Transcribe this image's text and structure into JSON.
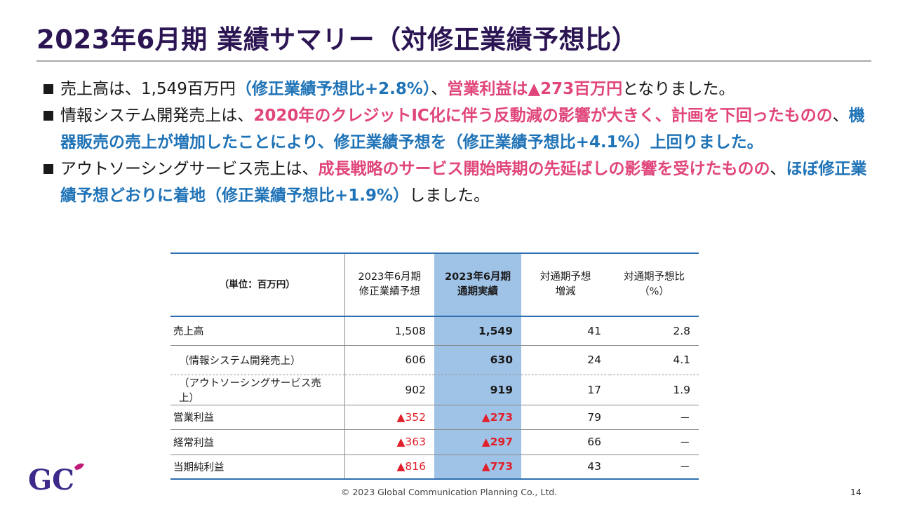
{
  "slide": {
    "title": "2023年6月期 業績サマリー（対修正業績予想比）",
    "bullets": [
      {
        "segments": [
          {
            "text": "売上高は、1,549百万円",
            "style": "normal"
          },
          {
            "text": "（修正業績予想比+2.8%）",
            "style": "blue"
          },
          {
            "text": "、",
            "style": "normal"
          },
          {
            "text": "営業利益は▲273百万円",
            "style": "pink"
          },
          {
            "text": "となりました。",
            "style": "normal"
          }
        ]
      },
      {
        "segments": [
          {
            "text": "情報システム開発売上は、",
            "style": "normal"
          },
          {
            "text": "2020年のクレジットIC化に伴う反動減の影響が大きく、計画を下回ったものの",
            "style": "pink"
          },
          {
            "text": "、",
            "style": "normal"
          },
          {
            "text": "機器販売の売上が増加したことにより、修正業績予想を（修正業績予想比+4.1%）上回りました。",
            "style": "blue"
          }
        ]
      },
      {
        "segments": [
          {
            "text": "アウトソーシングサービス売上は、",
            "style": "normal"
          },
          {
            "text": "成長戦略のサービス開始時期の先延ばしの影響を受けたものの",
            "style": "pink"
          },
          {
            "text": "、",
            "style": "normal"
          },
          {
            "text": "ほぼ修正業績予想どおりに着地（修正業績予想比+1.9%）",
            "style": "blue"
          },
          {
            "text": "しました。",
            "style": "normal"
          }
        ]
      }
    ]
  },
  "table": {
    "unit_label": "（単位：百万円）",
    "columns": [
      {
        "line1": "2023年6月期",
        "line2": "修正業績予想"
      },
      {
        "line1": "2023年6月期",
        "line2": "通期実績"
      },
      {
        "line1": "対通期予想",
        "line2": "増減"
      },
      {
        "line1": "対通期予想比",
        "line2": "（%）"
      }
    ],
    "rows": [
      {
        "label": "売上高",
        "forecast": "1,508",
        "actual": "1,549",
        "diff": "41",
        "ratio": "2.8",
        "negative": false,
        "sub": false
      },
      {
        "label": "（情報システム開発売上）",
        "forecast": "606",
        "actual": "630",
        "diff": "24",
        "ratio": "4.1",
        "negative": false,
        "sub": true
      },
      {
        "label": "（アウトソーシングサービス売上）",
        "forecast": "902",
        "actual": "919",
        "diff": "17",
        "ratio": "1.9",
        "negative": false,
        "sub": true
      },
      {
        "label": "営業利益",
        "forecast": "▲352",
        "actual": "▲273",
        "diff": "79",
        "ratio": "－",
        "negative": true,
        "sub": false
      },
      {
        "label": "経常利益",
        "forecast": "▲363",
        "actual": "▲297",
        "diff": "66",
        "ratio": "－",
        "negative": true,
        "sub": false
      },
      {
        "label": "当期純利益",
        "forecast": "▲816",
        "actual": "▲773",
        "diff": "43",
        "ratio": "－",
        "negative": true,
        "sub": false
      }
    ]
  },
  "footer": {
    "copyright": "© 2023 Global Communication Planning Co., Ltd.",
    "page_number": "14"
  },
  "logo": {
    "text": "GC"
  },
  "colors": {
    "title": "#2b1553",
    "pink": "#e0457b",
    "blue": "#1f73b7",
    "negative": "#e0202a",
    "highlight_column": "#9fc2e7",
    "rule": "#2f6fb0"
  }
}
